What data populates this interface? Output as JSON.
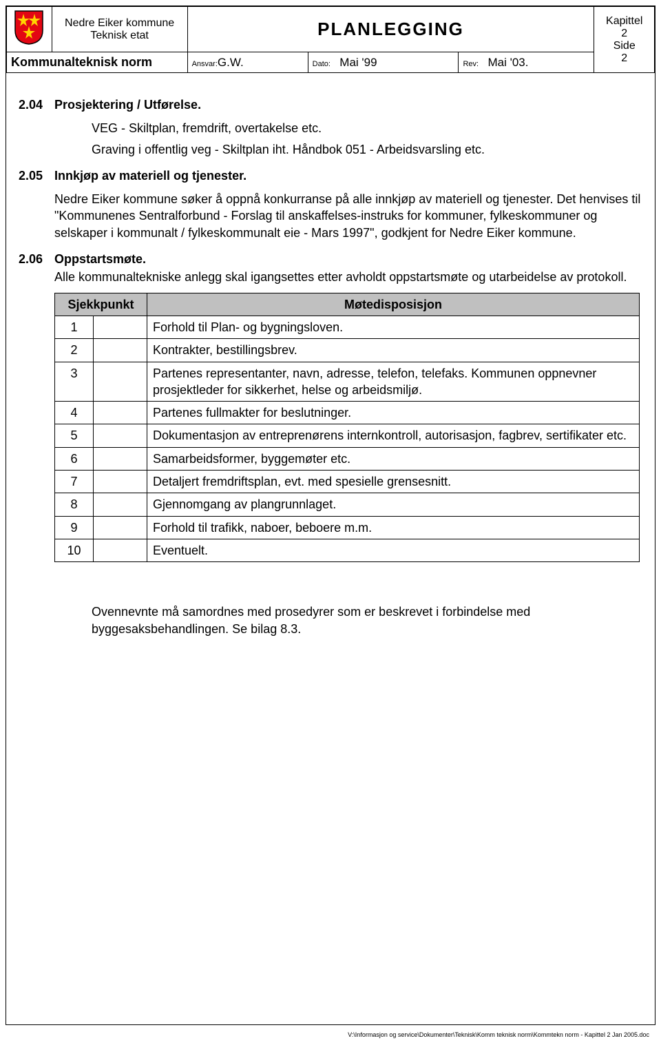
{
  "header": {
    "org_line1": "Nedre Eiker kommune",
    "org_line2": "Teknisk etat",
    "page_title": "PLANLEGGING",
    "kapittel_label": "Kapittel",
    "kapittel_num": "2",
    "side_label": "Side",
    "side_num": "2",
    "norm_label": "Kommunalteknisk norm",
    "ansvar_label": "Ansvar:",
    "ansvar_value": "G.W.",
    "dato_label": "Dato:",
    "dato_value": "Mai '99",
    "rev_label": "Rev:",
    "rev_value": "Mai '03."
  },
  "sections": {
    "s204": {
      "num": "2.04",
      "title": "Prosjektering / Utførelse.",
      "p1": "VEG - Skiltplan, fremdrift, overtakelse etc.",
      "p2": "Graving i offentlig veg - Skiltplan iht. Håndbok 051 - Arbeidsvarsling etc."
    },
    "s205": {
      "num": "2.05",
      "title": "Innkjøp av materiell og tjenester.",
      "p1": "Nedre Eiker kommune søker å oppnå konkurranse på alle innkjøp av materiell og tjenester.  Det henvises til \"Kommunenes Sentralforbund - Forslag til anskaffelses-instruks for kommuner, fylkeskommuner og selskaper i kommunalt / fylkeskommunalt eie - Mars 1997\", godkjent for Nedre Eiker kommune."
    },
    "s206": {
      "num": "2.06",
      "title": "Oppstartsmøte.",
      "p1": "Alle kommunaltekniske anlegg skal igangsettes etter avholdt oppstartsmøte og utarbeidelse av protokoll."
    }
  },
  "table": {
    "col1": "Sjekkpunkt",
    "col2": "Møtedisposisjon",
    "rows": [
      {
        "n": "1",
        "t": "Forhold til Plan- og bygningsloven."
      },
      {
        "n": "2",
        "t": "Kontrakter, bestillingsbrev."
      },
      {
        "n": "3",
        "t": "Partenes representanter, navn, adresse, telefon, telefaks. Kommunen oppnevner prosjektleder for sikkerhet, helse og arbeidsmiljø."
      },
      {
        "n": "4",
        "t": "Partenes fullmakter for beslutninger."
      },
      {
        "n": "5",
        "t": "Dokumentasjon av entreprenørens internkontroll, autorisasjon, fagbrev, sertifikater etc."
      },
      {
        "n": "6",
        "t": "Samarbeidsformer, byggemøter etc."
      },
      {
        "n": "7",
        "t": "Detaljert fremdriftsplan, evt. med spesielle grensesnitt."
      },
      {
        "n": "8",
        "t": "Gjennomgang av plangrunnlaget."
      },
      {
        "n": "9",
        "t": "Forhold til trafikk, naboer, beboere m.m."
      },
      {
        "n": "10",
        "t": "Eventuelt."
      }
    ]
  },
  "closing": "Ovennevnte må samordnes med prosedyrer som er beskrevet i forbindelse med byggesaksbehandlingen. Se bilag 8.3.",
  "footer_path": "V:\\Informasjon og service\\Dokumenter\\Teknisk\\Komm teknisk norm\\Kommtekn norm - Kapittel 2 Jan 2005.doc",
  "logo": {
    "fill": "#e30613",
    "accent": "#ffd400",
    "stroke": "#000000"
  }
}
